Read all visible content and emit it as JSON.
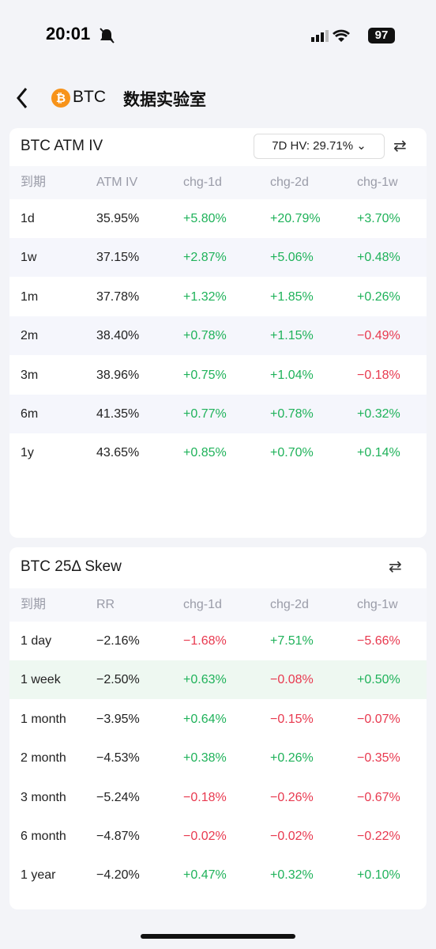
{
  "status_bar": {
    "time": "20:01",
    "battery": "97"
  },
  "header": {
    "coin": "BTC",
    "title": "数据实验室"
  },
  "atm_iv": {
    "title": "BTC ATM IV",
    "hv": "7D HV: 29.71%",
    "columns": [
      "到期",
      "ATM IV",
      "chg-1d",
      "chg-2d",
      "chg-1w"
    ],
    "rows": [
      [
        "1d",
        "35.95%",
        "+5.80%",
        "+20.79%",
        "+3.70%"
      ],
      [
        "1w",
        "37.15%",
        "+2.87%",
        "+5.06%",
        "+0.48%"
      ],
      [
        "1m",
        "37.78%",
        "+1.32%",
        "+1.85%",
        "+0.26%"
      ],
      [
        "2m",
        "38.40%",
        "+0.78%",
        "+1.15%",
        "−0.49%"
      ],
      [
        "3m",
        "38.96%",
        "+0.75%",
        "+1.04%",
        "−0.18%"
      ],
      [
        "6m",
        "41.35%",
        "+0.77%",
        "+0.78%",
        "+0.32%"
      ],
      [
        "1y",
        "43.65%",
        "+0.85%",
        "+0.70%",
        "+0.14%"
      ]
    ]
  },
  "skew": {
    "title": "BTC 25Δ Skew",
    "columns": [
      "到期",
      "RR",
      "chg-1d",
      "chg-2d",
      "chg-1w"
    ],
    "rows": [
      [
        "1 day",
        "−2.16%",
        "−1.68%",
        "+7.51%",
        "−5.66%"
      ],
      [
        "1 week",
        "−2.50%",
        "+0.63%",
        "−0.08%",
        "+0.50%"
      ],
      [
        "1 month",
        "−3.95%",
        "+0.64%",
        "−0.15%",
        "−0.07%"
      ],
      [
        "2 month",
        "−4.53%",
        "+0.38%",
        "+0.26%",
        "−0.35%"
      ],
      [
        "3 month",
        "−5.24%",
        "−0.18%",
        "−0.26%",
        "−0.67%"
      ],
      [
        "6 month",
        "−4.87%",
        "−0.02%",
        "−0.02%",
        "−0.22%"
      ],
      [
        "1 year",
        "−4.20%",
        "+0.47%",
        "+0.32%",
        "+0.10%"
      ]
    ]
  }
}
